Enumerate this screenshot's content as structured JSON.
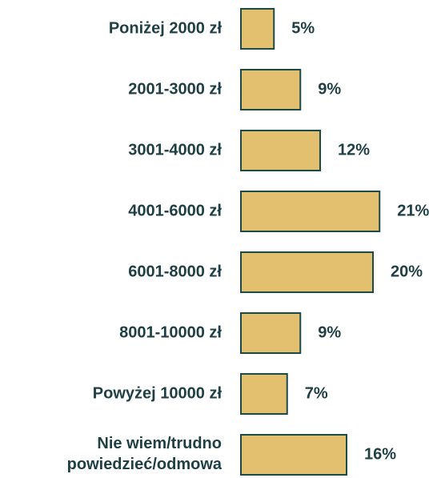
{
  "chart_data": {
    "type": "bar",
    "orientation": "horizontal",
    "categories": [
      "Poniżej 2000 zł",
      "2001-3000 zł",
      "3001-4000 zł",
      "4001-6000 zł",
      "6001-8000 zł",
      "8001-10000 zł",
      "Powyżej 10000 zł",
      "Nie wiem/trudno\npowiedzieć/odmowa"
    ],
    "values": [
      5,
      9,
      12,
      21,
      20,
      9,
      7,
      16
    ],
    "value_labels": [
      "5%",
      "9%",
      "12%",
      "21%",
      "20%",
      "9%",
      "7%",
      "16%"
    ],
    "color": "#e3c06f",
    "edgecolor": "#1c4a4a"
  }
}
